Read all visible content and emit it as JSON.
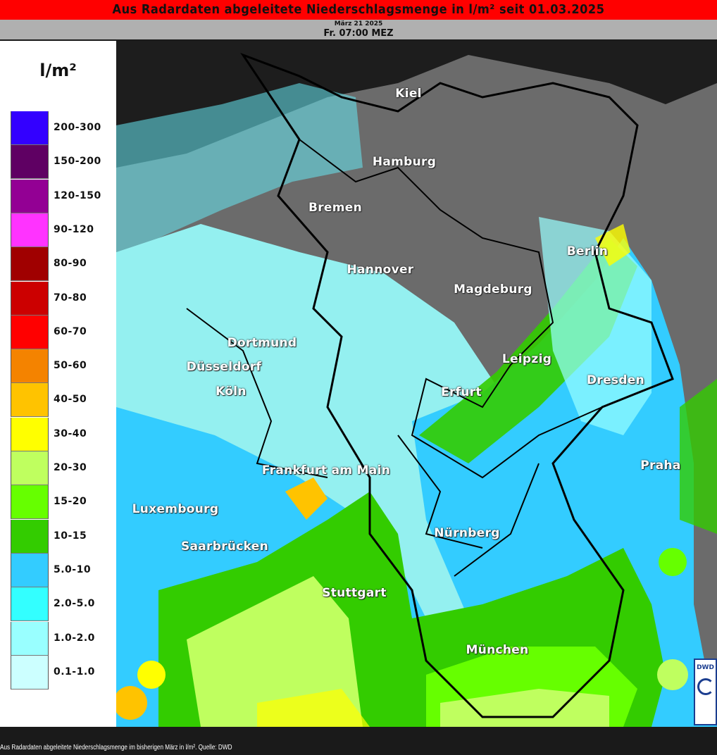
{
  "header": {
    "title": "Aus Radardaten abgeleitete Niederschlagsmenge in l/m² seit 01.03.2025",
    "date": "März 21 2025",
    "time": "Fr. 07:00 MEZ",
    "title_color": "#ff0000"
  },
  "legend": {
    "unit": "l/m²",
    "items": [
      {
        "label": "200-300",
        "color": "#3300ff"
      },
      {
        "label": "150-200",
        "color": "#5f0063"
      },
      {
        "label": "120-150",
        "color": "#930094"
      },
      {
        "label": "90-120",
        "color": "#ff33ff"
      },
      {
        "label": "80-90",
        "color": "#a00000"
      },
      {
        "label": "70-80",
        "color": "#cc0000"
      },
      {
        "label": "60-70",
        "color": "#ff0000"
      },
      {
        "label": "50-60",
        "color": "#f48300"
      },
      {
        "label": "40-50",
        "color": "#ffc300"
      },
      {
        "label": "30-40",
        "color": "#ffff00"
      },
      {
        "label": "20-30",
        "color": "#bfff5f"
      },
      {
        "label": "15-20",
        "color": "#66ff00"
      },
      {
        "label": "10-15",
        "color": "#33cc00"
      },
      {
        "label": "5.0-10",
        "color": "#33ccff"
      },
      {
        "label": "2.0-5.0",
        "color": "#33ffff"
      },
      {
        "label": "1.0-2.0",
        "color": "#99ffff"
      },
      {
        "label": "0.1-1.0",
        "color": "#ccffff"
      }
    ]
  },
  "map": {
    "cities": [
      "Kiel",
      "Hamburg",
      "Bremen",
      "Berlin",
      "Hannover",
      "Magdeburg",
      "Dortmund",
      "Leipzig",
      "Düsseldorf",
      "Dresden",
      "Köln",
      "Erfurt",
      "Praha",
      "Frankfurt am Main",
      "Luxembourg",
      "Nürnberg",
      "Saarbrücken",
      "Stuttgart",
      "München"
    ],
    "logo": "DWD"
  },
  "footer": {
    "caption": "Aus Radardaten abgeleitete Niederschlagsmenge im bisherigen März in l/m². Quelle: DWD"
  }
}
